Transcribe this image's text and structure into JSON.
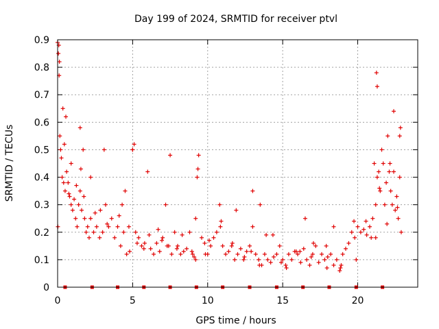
{
  "chart_data": {
    "type": "scatter",
    "title": "Day 199 of 2024, SRMTID for receiver ptvl",
    "xlabel": "GPS time / hours",
    "ylabel": "SRMTID / TECUs",
    "xlim": [
      0,
      24
    ],
    "ylim": [
      0,
      0.9
    ],
    "xticks": [
      0,
      5,
      10,
      15,
      20
    ],
    "yticks": [
      0,
      0.1,
      0.2,
      0.3,
      0.4,
      0.5,
      0.6,
      0.7,
      0.8,
      0.9
    ],
    "grid": true,
    "marker": "+",
    "color": "#e00000",
    "series": [
      {
        "name": "SRMTID",
        "x": [
          0.0,
          0.05,
          0.1,
          0.15,
          0.2,
          0.25,
          0.3,
          0.4,
          0.5,
          0.6,
          0.7,
          0.8,
          0.9,
          1.0,
          1.1,
          1.2,
          1.3,
          1.4,
          1.5,
          1.6,
          1.7,
          1.8,
          1.9,
          2.0,
          2.1,
          2.2,
          2.4,
          2.6,
          2.8,
          3.0,
          3.2,
          3.4,
          3.6,
          3.8,
          4.0,
          4.2,
          4.4,
          4.6,
          4.8,
          5.0,
          5.2,
          5.4,
          5.6,
          5.8,
          6.0,
          6.2,
          6.4,
          6.6,
          6.8,
          7.0,
          7.2,
          7.4,
          7.6,
          7.8,
          8.0,
          8.2,
          8.4,
          8.6,
          8.8,
          9.0,
          9.2,
          9.4,
          9.6,
          9.8,
          10.0,
          10.2,
          10.4,
          10.6,
          10.8,
          11.0,
          11.2,
          11.4,
          11.6,
          11.8,
          12.0,
          12.2,
          12.4,
          12.6,
          12.8,
          13.0,
          13.2,
          13.4,
          13.6,
          13.8,
          14.0,
          14.2,
          14.4,
          14.6,
          14.8,
          15.0,
          15.2,
          15.4,
          15.6,
          15.8,
          16.0,
          16.2,
          16.4,
          16.6,
          16.8,
          17.0,
          17.2,
          17.4,
          17.6,
          17.8,
          18.0,
          18.2,
          18.4,
          18.6,
          18.8,
          19.0,
          19.2,
          19.4,
          19.6,
          19.8,
          20.0,
          20.2,
          20.4,
          20.6,
          20.8,
          21.0,
          21.1,
          21.2,
          21.3,
          21.4,
          21.5,
          21.6,
          21.7,
          21.8,
          21.9,
          22.0,
          22.1,
          22.2,
          22.3,
          22.4,
          22.5,
          22.6,
          22.7,
          22.8,
          22.9,
          0.02,
          0.08,
          0.12,
          0.35,
          0.55,
          1.5,
          2.2,
          3.1,
          4.3,
          4.5,
          5.0,
          5.1,
          7.5,
          9.2,
          9.3,
          9.35,
          13.0,
          13.5,
          16.5,
          18.4,
          21.2,
          21.25,
          21.3,
          22.4,
          22.8,
          22.85,
          0.45,
          0.9,
          1.25,
          1.75,
          2.5,
          3.3,
          4.1,
          5.3,
          6.1,
          6.7,
          7.3,
          8.3,
          9.1,
          10.1,
          10.9,
          11.9,
          12.9,
          13.9,
          14.9,
          15.9,
          16.9,
          17.9,
          18.9,
          19.9,
          20.9,
          21.95,
          22.65,
          0.75,
          1.55,
          2.85,
          4.75,
          5.75,
          6.95,
          7.95,
          8.95,
          9.85,
          10.85,
          11.65,
          12.45,
          13.45,
          14.35,
          15.25,
          16.15,
          17.05,
          17.95,
          18.85,
          19.75,
          20.55,
          21.45,
          22.15
        ],
        "y": [
          0.89,
          0.85,
          0.77,
          0.55,
          0.5,
          0.47,
          0.4,
          0.38,
          0.35,
          0.42,
          0.38,
          0.33,
          0.3,
          0.28,
          0.32,
          0.25,
          0.22,
          0.3,
          0.35,
          0.28,
          0.5,
          0.25,
          0.2,
          0.22,
          0.18,
          0.25,
          0.2,
          0.22,
          0.18,
          0.2,
          0.3,
          0.22,
          0.25,
          0.18,
          0.22,
          0.15,
          0.2,
          0.12,
          0.13,
          0.5,
          0.2,
          0.18,
          0.15,
          0.16,
          0.42,
          0.14,
          0.12,
          0.16,
          0.13,
          0.18,
          0.3,
          0.15,
          0.12,
          0.2,
          0.15,
          0.12,
          0.13,
          0.14,
          0.2,
          0.12,
          0.1,
          0.48,
          0.18,
          0.16,
          0.12,
          0.15,
          0.18,
          0.2,
          0.3,
          0.15,
          0.12,
          0.13,
          0.15,
          0.1,
          0.12,
          0.14,
          0.1,
          0.13,
          0.15,
          0.22,
          0.12,
          0.1,
          0.08,
          0.12,
          0.1,
          0.09,
          0.11,
          0.12,
          0.15,
          0.1,
          0.08,
          0.12,
          0.1,
          0.13,
          0.12,
          0.09,
          0.14,
          0.1,
          0.08,
          0.12,
          0.15,
          0.09,
          0.12,
          0.1,
          0.11,
          0.12,
          0.08,
          0.1,
          0.06,
          0.12,
          0.14,
          0.16,
          0.2,
          0.18,
          0.22,
          0.2,
          0.21,
          0.19,
          0.22,
          0.25,
          0.45,
          0.3,
          0.4,
          0.42,
          0.35,
          0.5,
          0.45,
          0.3,
          0.38,
          0.55,
          0.42,
          0.35,
          0.3,
          0.42,
          0.28,
          0.33,
          0.25,
          0.4,
          0.2,
          0.22,
          0.88,
          0.82,
          0.65,
          0.62,
          0.58,
          0.4,
          0.5,
          0.3,
          0.35,
          0.5,
          0.52,
          0.48,
          0.25,
          0.4,
          0.43,
          0.35,
          0.3,
          0.25,
          0.22,
          0.18,
          0.78,
          0.73,
          0.64,
          0.55,
          0.58,
          0.52,
          0.45,
          0.37,
          0.33,
          0.27,
          0.23,
          0.26,
          0.16,
          0.19,
          0.21,
          0.15,
          0.19,
          0.11,
          0.17,
          0.24,
          0.28,
          0.13,
          0.19,
          0.09,
          0.13,
          0.11,
          0.15,
          0.08,
          0.1,
          0.18,
          0.23,
          0.29,
          0.34,
          0.43,
          0.28,
          0.22,
          0.14,
          0.17,
          0.14,
          0.13,
          0.12,
          0.22,
          0.16,
          0.11,
          0.08,
          0.19,
          0.07,
          0.13,
          0.16,
          0.07,
          0.07,
          0.24,
          0.24,
          0.36,
          0.45
        ]
      }
    ],
    "markers_at_zero": [
      0.5,
      2.3,
      4.0,
      5.75,
      7.5,
      9.25,
      11.0,
      12.8,
      14.6,
      16.35,
      18.1,
      19.9,
      21.65
    ]
  }
}
